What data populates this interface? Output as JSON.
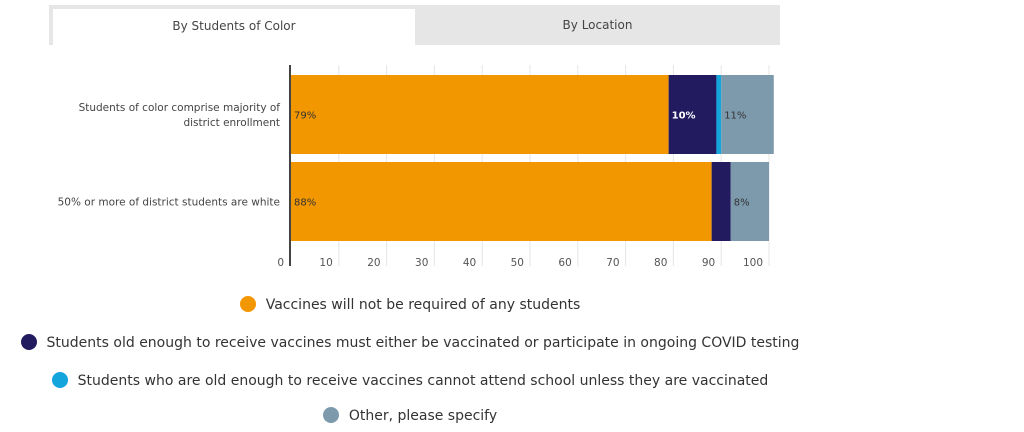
{
  "tabs": [
    {
      "label": "By Students of Color",
      "active": true
    },
    {
      "label": "By Location",
      "active": false
    }
  ],
  "chart_data": {
    "type": "bar",
    "orientation": "horizontal",
    "stacked": true,
    "title": "",
    "xlabel": "",
    "ylabel": "",
    "xlim": [
      0,
      100
    ],
    "x_ticks": [
      0,
      10,
      20,
      30,
      40,
      50,
      60,
      70,
      80,
      90,
      100
    ],
    "grid": true,
    "legend_position": "bottom",
    "categories": [
      "Students of color comprise majority of district enrollment",
      "50% or more of district students are white"
    ],
    "category_lines": [
      [
        "Students of color comprise majority of",
        "district enrollment"
      ],
      [
        "50% or more of district students are white"
      ]
    ],
    "series": [
      {
        "name": "Vaccines will not be required of any students",
        "color": "#f29700",
        "values": [
          79,
          88
        ],
        "labels": [
          "79%",
          "88%"
        ]
      },
      {
        "name": "Students old enough to receive vaccines must either be vaccinated or participate in ongoing COVID testing",
        "color": "#221b60",
        "values": [
          10,
          4
        ],
        "labels": [
          "10%",
          ""
        ]
      },
      {
        "name": "Students who are old enough to receive vaccines cannot attend school unless they are vaccinated",
        "color": "#14a5dc",
        "values": [
          1,
          0
        ],
        "labels": [
          "",
          ""
        ]
      },
      {
        "name": "Other, please specify",
        "color": "#7d9aad",
        "values": [
          11,
          8
        ],
        "labels": [
          "11%",
          "8%"
        ]
      }
    ]
  }
}
